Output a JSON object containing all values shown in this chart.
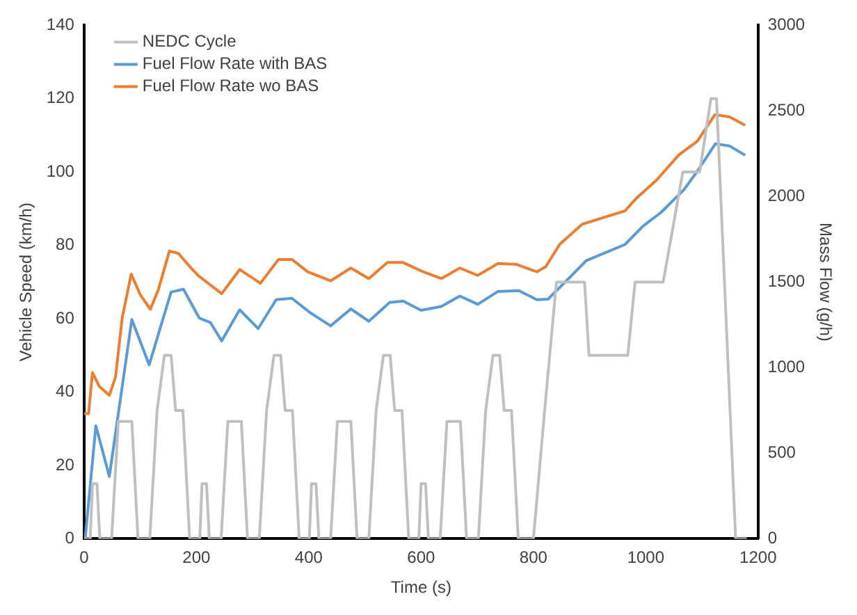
{
  "chart_data": {
    "type": "line",
    "xlabel": "Time (s)",
    "ylabel": "Vehicle Speed (km/h)",
    "y2label": "Mass Flow (g/h)",
    "xlim": [
      0,
      1200
    ],
    "xticks": [
      0,
      200,
      400,
      600,
      800,
      1000,
      1200
    ],
    "ylim": [
      0,
      140
    ],
    "yticks": [
      0,
      20,
      40,
      60,
      80,
      100,
      120,
      140
    ],
    "y2lim": [
      0,
      3000
    ],
    "y2ticks": [
      0,
      500,
      1000,
      1500,
      2000,
      2500,
      3000
    ],
    "grid": false,
    "legend": "top left",
    "marker": "none",
    "line_style": "solid",
    "series": [
      {
        "name": "NEDC Cycle",
        "color": "#bfbfbf",
        "x": [
          0,
          11,
          15,
          23,
          28,
          49,
          61,
          85,
          96,
          117,
          130,
          143,
          155,
          163,
          176,
          188,
          195,
          206,
          210,
          218,
          223,
          244,
          256,
          280,
          291,
          312,
          325,
          338,
          350,
          358,
          371,
          383,
          390,
          401,
          405,
          413,
          418,
          439,
          451,
          475,
          486,
          507,
          520,
          533,
          545,
          553,
          566,
          578,
          585,
          596,
          600,
          608,
          613,
          634,
          646,
          670,
          681,
          702,
          715,
          728,
          740,
          748,
          761,
          773,
          780,
          800,
          820,
          841,
          891,
          899,
          968,
          981,
          1031,
          1066,
          1096,
          1116,
          1126,
          1160,
          1180
        ],
        "values": [
          0,
          0,
          15,
          15,
          0,
          0,
          32,
          32,
          0,
          0,
          35,
          50,
          50,
          35,
          35,
          0,
          0,
          0,
          15,
          15,
          0,
          0,
          32,
          32,
          0,
          0,
          35,
          50,
          50,
          35,
          35,
          0,
          0,
          0,
          15,
          15,
          0,
          0,
          32,
          32,
          0,
          0,
          35,
          50,
          50,
          35,
          35,
          0,
          0,
          0,
          15,
          15,
          0,
          0,
          32,
          32,
          0,
          0,
          35,
          50,
          50,
          35,
          35,
          0,
          0,
          0,
          35,
          70,
          70,
          50,
          50,
          70,
          70,
          100,
          100,
          120,
          120,
          0,
          0
        ]
      },
      {
        "name": "Fuel Flow Rate with BAS",
        "color": "#5b9bd5",
        "axis": "y2",
        "x": [
          2,
          21,
          45,
          85,
          116,
          136,
          155,
          177,
          205,
          225,
          245,
          277,
          310,
          342,
          370,
          402,
          439,
          475,
          507,
          544,
          568,
          600,
          636,
          669,
          701,
          737,
          774,
          806,
          826,
          866,
          894,
          963,
          995,
          1027,
          1068,
          1092,
          1124,
          1149,
          1177
        ],
        "values": [
          0,
          660,
          364,
          1281,
          1016,
          1236,
          1442,
          1458,
          1290,
          1263,
          1156,
          1338,
          1228,
          1397,
          1405,
          1322,
          1244,
          1343,
          1271,
          1381,
          1389,
          1335,
          1357,
          1418,
          1370,
          1445,
          1450,
          1397,
          1400,
          1531,
          1625,
          1719,
          1826,
          1906,
          2040,
          2148,
          2308,
          2295,
          2241
        ]
      },
      {
        "name": "Fuel Flow Rate wo BAS",
        "color": "#ed7d31",
        "axis": "y2",
        "x": [
          0,
          8,
          15,
          27,
          45,
          56,
          68,
          84,
          100,
          118,
          132,
          152,
          168,
          189,
          205,
          245,
          277,
          314,
          346,
          370,
          398,
          439,
          475,
          507,
          540,
          568,
          600,
          636,
          669,
          701,
          737,
          770,
          806,
          822,
          847,
          887,
          963,
          983,
          1019,
          1059,
          1092,
          1123,
          1149,
          1177
        ],
        "values": [
          731,
          731,
          971,
          891,
          838,
          945,
          1293,
          1547,
          1426,
          1341,
          1453,
          1681,
          1667,
          1587,
          1533,
          1432,
          1573,
          1493,
          1632,
          1632,
          1560,
          1507,
          1582,
          1520,
          1614,
          1614,
          1565,
          1520,
          1582,
          1539,
          1608,
          1603,
          1560,
          1590,
          1721,
          1838,
          1916,
          1988,
          2095,
          2243,
          2323,
          2478,
          2465,
          2416
        ]
      }
    ]
  }
}
